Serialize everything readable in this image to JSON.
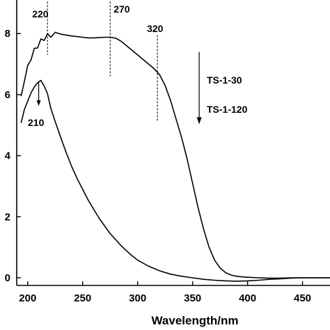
{
  "chart_data": {
    "type": "line",
    "title": "",
    "xlabel": "Wavelength/nm",
    "ylabel": "",
    "xlim": [
      190,
      475
    ],
    "ylim": [
      -0.25,
      9.1
    ],
    "xticks": [
      200,
      250,
      300,
      350,
      400,
      450
    ],
    "yticks": [
      0,
      2,
      4,
      6,
      8
    ],
    "xtick_labels": [
      "200",
      "250",
      "300",
      "350",
      "400",
      "450"
    ],
    "ytick_labels": [
      "0",
      "2",
      "4",
      "6",
      "8"
    ],
    "grid": false,
    "series": [
      {
        "x": [
          194,
          197,
          200,
          203,
          206,
          209,
          212,
          215,
          218,
          221,
          225,
          230,
          235,
          240,
          245,
          250,
          255,
          260,
          265,
          270,
          275,
          280,
          285,
          290,
          295,
          300,
          305,
          310,
          315,
          320,
          325,
          330,
          335,
          340,
          345,
          350,
          355,
          360,
          365,
          370,
          375,
          380,
          385,
          390,
          395,
          400,
          410,
          420,
          430,
          440,
          450,
          460,
          470,
          475
        ],
        "y": [
          5.9,
          6.5,
          6.9,
          7.2,
          7.45,
          7.6,
          7.75,
          7.85,
          7.92,
          7.96,
          8.0,
          7.98,
          7.95,
          7.92,
          7.9,
          7.88,
          7.86,
          7.86,
          7.87,
          7.88,
          7.88,
          7.85,
          7.75,
          7.6,
          7.45,
          7.3,
          7.15,
          7.0,
          6.85,
          6.65,
          6.3,
          5.8,
          5.2,
          4.6,
          3.9,
          3.1,
          2.3,
          1.6,
          1.0,
          0.58,
          0.32,
          0.17,
          0.09,
          0.05,
          0.03,
          0.02,
          0.0,
          -0.01,
          -0.01,
          0.0,
          0.0,
          0.0,
          0.0,
          0.0
        ]
      },
      {
        "x": [
          194,
          197,
          200,
          203,
          206,
          209,
          212,
          215,
          218,
          221,
          225,
          230,
          235,
          240,
          245,
          250,
          255,
          260,
          265,
          270,
          275,
          280,
          285,
          290,
          295,
          300,
          310,
          320,
          330,
          340,
          350,
          360,
          370,
          380,
          390,
          400,
          410,
          420,
          430,
          440,
          450,
          460,
          470,
          475
        ],
        "y": [
          5.1,
          5.5,
          5.8,
          6.05,
          6.25,
          6.4,
          6.45,
          6.3,
          6.0,
          5.6,
          5.15,
          4.6,
          4.1,
          3.65,
          3.25,
          2.9,
          2.55,
          2.25,
          1.95,
          1.7,
          1.45,
          1.25,
          1.05,
          0.88,
          0.72,
          0.58,
          0.38,
          0.23,
          0.12,
          0.05,
          0.0,
          -0.05,
          -0.08,
          -0.1,
          -0.11,
          -0.1,
          -0.08,
          -0.05,
          -0.03,
          -0.01,
          0.0,
          0.0,
          0.0,
          0.0
        ]
      }
    ],
    "annotations": {
      "peaks": [
        {
          "label": "220",
          "x": 218,
          "y_top": 9.05,
          "y_bottom": 7.3
        },
        {
          "label": "270",
          "x": 275,
          "y_top": 9.05,
          "y_bottom": 6.6
        },
        {
          "label": "320",
          "x": 318,
          "y_top": 7.95,
          "y_bottom": 5.1
        }
      ],
      "peak_210": {
        "label": "210",
        "x": 210,
        "arrow_from": 6.4,
        "arrow_to": 5.7
      },
      "legend_arrow": {
        "x": 356,
        "from": 7.4,
        "to": 5.1
      },
      "legend_labels": [
        "TS-1-30",
        "TS-1-120"
      ]
    }
  }
}
